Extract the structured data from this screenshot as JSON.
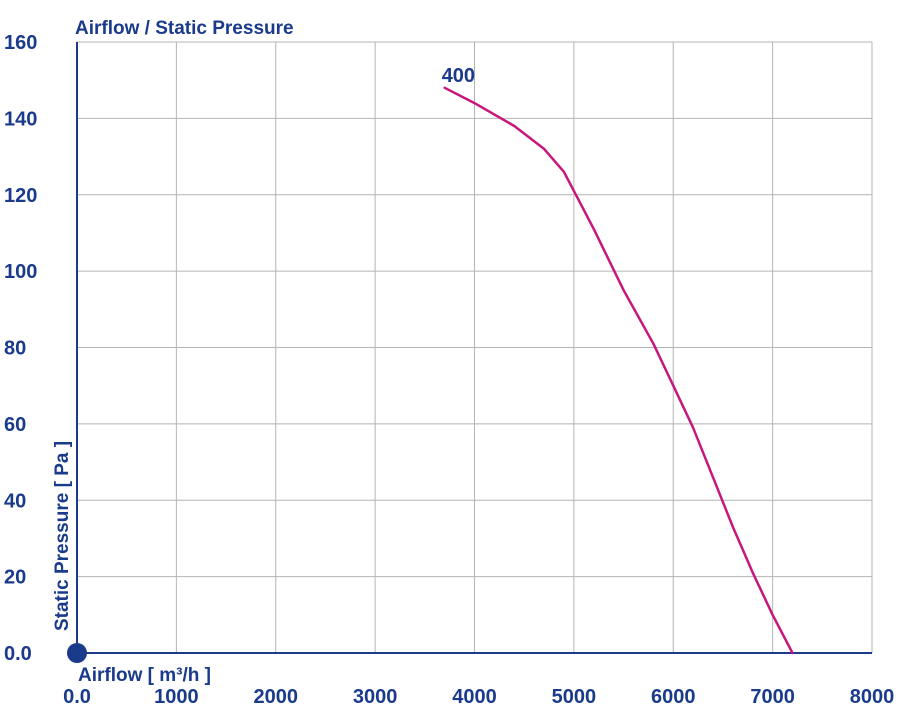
{
  "chart_data": {
    "type": "line",
    "title": "Airflow / Static Pressure",
    "xlabel": "Airflow [ m³/h ]",
    "ylabel": "Static Pressure [ Pa ]",
    "xlim": [
      0,
      8000
    ],
    "ylim": [
      0,
      160
    ],
    "x_ticks": [
      0,
      1000,
      2000,
      3000,
      4000,
      5000,
      6000,
      7000,
      8000
    ],
    "x_tick_labels": [
      "0.0",
      "1000",
      "2000",
      "3000",
      "4000",
      "5000",
      "6000",
      "7000",
      "8000"
    ],
    "y_ticks": [
      0,
      20,
      40,
      60,
      80,
      100,
      120,
      140,
      160
    ],
    "y_tick_labels": [
      "0.0",
      "20",
      "40",
      "60",
      "80",
      "100",
      "120",
      "140",
      "160"
    ],
    "grid": true,
    "series": [
      {
        "name": "400",
        "color": "#c8177c",
        "x": [
          3700,
          4000,
          4400,
          4700,
          4900,
          5000,
          5200,
          5500,
          5800,
          6000,
          6200,
          6400,
          6600,
          6800,
          7000,
          7200
        ],
        "y": [
          148,
          144,
          138,
          132,
          126,
          121,
          111,
          95,
          81,
          70,
          59,
          46,
          33,
          21,
          10,
          0
        ]
      }
    ]
  },
  "colors": {
    "text": "#1a3a8c",
    "grid": "#b4b4b4",
    "axis": "#1a3a8c",
    "origin_marker": "#1a3a8c"
  }
}
